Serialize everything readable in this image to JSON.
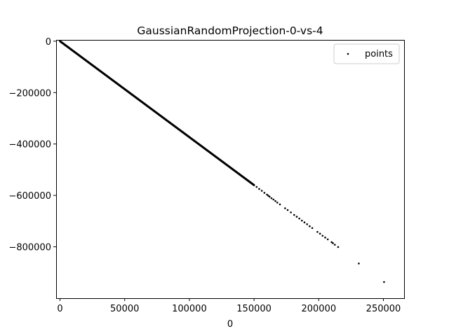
{
  "chart_data": {
    "type": "scatter",
    "title": "GaussianRandomProjection-0-vs-4",
    "xlabel": "0",
    "ylabel": "",
    "xlim": [
      -3000,
      266000
    ],
    "ylim": [
      -1000000,
      5000
    ],
    "xticks": [
      0,
      50000,
      100000,
      150000,
      200000,
      250000
    ],
    "xtick_labels": [
      "0",
      "50000",
      "100000",
      "150000",
      "200000",
      "250000"
    ],
    "yticks": [
      0,
      -200000,
      -400000,
      -600000,
      -800000
    ],
    "ytick_labels": [
      "0",
      "−200000",
      "−400000",
      "−600000",
      "−800000"
    ],
    "grid": false,
    "legend_position": "top-right",
    "series": [
      {
        "name": "points",
        "color": "#000000",
        "dense_segments": [
          {
            "x_start": 0,
            "x_end": 150000,
            "y_start": 0,
            "y_end": -560000
          }
        ],
        "x": [
          152000,
          154000,
          156000,
          158000,
          160000,
          161000,
          162000,
          163500,
          165000,
          166500,
          168000,
          170000,
          174000,
          176000,
          178500,
          181000,
          183000,
          185000,
          187000,
          189000,
          191000,
          193000,
          195000,
          199000,
          201000,
          203000,
          205000,
          207000,
          210000,
          211000,
          212500,
          215000,
          231000,
          250500
        ],
        "y": [
          -567000,
          -575000,
          -582000,
          -590000,
          -597000,
          -601000,
          -605000,
          -611000,
          -616000,
          -622000,
          -628000,
          -635000,
          -650000,
          -657000,
          -666000,
          -676000,
          -683000,
          -690000,
          -698000,
          -705000,
          -712000,
          -720000,
          -727000,
          -742000,
          -749000,
          -757000,
          -764000,
          -771000,
          -782000,
          -786000,
          -792000,
          -801000,
          -865000,
          -937000
        ]
      }
    ]
  }
}
